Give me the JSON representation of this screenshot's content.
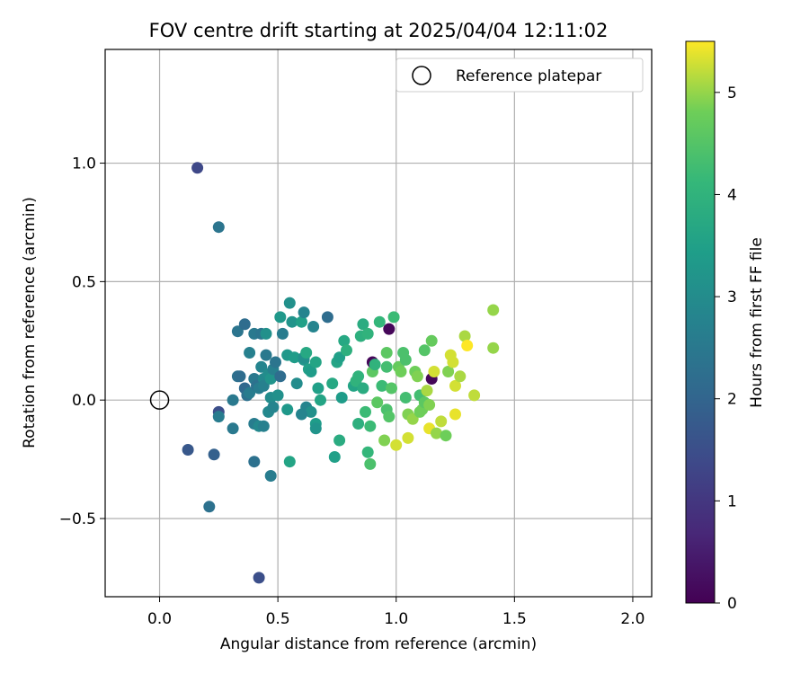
{
  "chart_data": {
    "type": "scatter",
    "title": "FOV centre drift starting at 2025/04/04 12:11:02",
    "xlabel": "Angular distance from reference (arcmin)",
    "ylabel": "Rotation from reference (arcmin)",
    "xlim": [
      -0.23,
      2.08
    ],
    "ylim": [
      -0.83,
      1.48
    ],
    "xticks": [
      0.0,
      0.5,
      1.0,
      1.5,
      2.0
    ],
    "xtick_labels": [
      "0.0",
      "0.5",
      "1.0",
      "1.5",
      "2.0"
    ],
    "yticks": [
      -0.5,
      0.0,
      0.5,
      1.0
    ],
    "ytick_labels": [
      "−0.5",
      "0.0",
      "0.5",
      "1.0"
    ],
    "grid": true,
    "legend": {
      "position": "top-right",
      "entries": [
        {
          "label": "Reference platepar",
          "marker": "open-circle"
        }
      ]
    },
    "reference_point": {
      "x": 0.0,
      "y": 0.0
    },
    "colorbar": {
      "label": "Hours from first FF file",
      "range": [
        0,
        5.5
      ],
      "ticks": [
        0,
        1,
        2,
        3,
        4,
        5
      ],
      "tick_labels": [
        "0",
        "1",
        "2",
        "3",
        "4",
        "5"
      ],
      "colormap": "viridis"
    },
    "points": [
      [
        0.16,
        0.98,
        1.35
      ],
      [
        0.25,
        0.73,
        2.4
      ],
      [
        0.12,
        -0.21,
        1.7
      ],
      [
        0.23,
        -0.23,
        1.9
      ],
      [
        0.21,
        -0.45,
        2.3
      ],
      [
        0.42,
        -0.75,
        1.5
      ],
      [
        0.25,
        -0.05,
        1.5
      ],
      [
        0.25,
        -0.07,
        2.6
      ],
      [
        0.31,
        0.0,
        2.5
      ],
      [
        0.31,
        -0.12,
        2.5
      ],
      [
        0.33,
        0.1,
        2.3
      ],
      [
        0.34,
        0.1,
        2.2
      ],
      [
        0.33,
        0.29,
        2.4
      ],
      [
        0.36,
        0.32,
        2.2
      ],
      [
        0.36,
        0.05,
        2.1
      ],
      [
        0.37,
        0.02,
        2.3
      ],
      [
        0.38,
        0.03,
        2.6
      ],
      [
        0.38,
        0.2,
        2.7
      ],
      [
        0.4,
        0.28,
        2.5
      ],
      [
        0.4,
        0.09,
        2.5
      ],
      [
        0.41,
        0.06,
        2.3
      ],
      [
        0.42,
        0.05,
        2.6
      ],
      [
        0.43,
        0.28,
        2.4
      ],
      [
        0.43,
        0.14,
        2.8
      ],
      [
        0.44,
        0.09,
        2.9
      ],
      [
        0.44,
        0.06,
        2.7
      ],
      [
        0.45,
        0.19,
        2.5
      ],
      [
        0.45,
        0.28,
        3.1
      ],
      [
        0.46,
        0.11,
        3.0
      ],
      [
        0.46,
        -0.05,
        2.9
      ],
      [
        0.47,
        0.01,
        3.0
      ],
      [
        0.47,
        0.09,
        3.2
      ],
      [
        0.48,
        -0.03,
        2.8
      ],
      [
        0.48,
        0.13,
        2.7
      ],
      [
        0.49,
        0.16,
        2.4
      ],
      [
        0.5,
        0.02,
        3.1
      ],
      [
        0.47,
        -0.32,
        2.6
      ],
      [
        0.4,
        -0.26,
        2.3
      ],
      [
        0.4,
        -0.1,
        2.6
      ],
      [
        0.42,
        -0.11,
        2.9
      ],
      [
        0.44,
        -0.11,
        2.7
      ],
      [
        0.51,
        0.35,
        3.3
      ],
      [
        0.52,
        0.28,
        2.6
      ],
      [
        0.51,
        0.1,
        2.2
      ],
      [
        0.55,
        0.41,
        3.1
      ],
      [
        0.56,
        0.33,
        3.2
      ],
      [
        0.54,
        0.19,
        3.3
      ],
      [
        0.57,
        0.18,
        3.4
      ],
      [
        0.58,
        0.07,
        3.0
      ],
      [
        0.6,
        0.33,
        3.5
      ],
      [
        0.61,
        0.37,
        2.8
      ],
      [
        0.61,
        0.17,
        3.2
      ],
      [
        0.61,
        0.18,
        3.1
      ],
      [
        0.62,
        0.2,
        3.7
      ],
      [
        0.63,
        0.13,
        3.5
      ],
      [
        0.64,
        0.12,
        3.4
      ],
      [
        0.65,
        0.31,
        2.8
      ],
      [
        0.66,
        0.16,
        3.6
      ],
      [
        0.62,
        -0.03,
        2.8
      ],
      [
        0.64,
        -0.05,
        3.1
      ],
      [
        0.6,
        -0.06,
        2.8
      ],
      [
        0.54,
        -0.04,
        3.3
      ],
      [
        0.55,
        -0.26,
        3.6
      ],
      [
        0.66,
        -0.1,
        3.4
      ],
      [
        0.66,
        -0.12,
        3.2
      ],
      [
        0.67,
        0.05,
        3.5
      ],
      [
        0.68,
        0.0,
        3.6
      ],
      [
        0.71,
        0.35,
        2.2
      ],
      [
        0.73,
        0.07,
        3.7
      ],
      [
        0.74,
        -0.24,
        3.5
      ],
      [
        0.75,
        0.16,
        3.6
      ],
      [
        0.76,
        0.18,
        3.5
      ],
      [
        0.76,
        -0.17,
        3.8
      ],
      [
        0.77,
        0.01,
        3.4
      ],
      [
        0.78,
        0.25,
        3.7
      ],
      [
        0.79,
        0.21,
        3.9
      ],
      [
        0.82,
        0.06,
        3.6
      ],
      [
        0.83,
        0.08,
        4.0
      ],
      [
        0.84,
        0.1,
        4.0
      ],
      [
        0.84,
        -0.1,
        3.9
      ],
      [
        0.85,
        0.27,
        3.9
      ],
      [
        0.86,
        0.32,
        3.8
      ],
      [
        0.86,
        0.05,
        3.8
      ],
      [
        0.87,
        -0.05,
        4.2
      ],
      [
        0.88,
        -0.22,
        4.1
      ],
      [
        0.88,
        0.28,
        4.0
      ],
      [
        0.89,
        -0.27,
        4.4
      ],
      [
        0.89,
        -0.11,
        4.2
      ],
      [
        0.9,
        0.12,
        4.6
      ],
      [
        0.9,
        0.16,
        0.1
      ],
      [
        0.91,
        0.15,
        4.0
      ],
      [
        0.92,
        -0.01,
        4.6
      ],
      [
        0.93,
        0.33,
        4.1
      ],
      [
        0.94,
        0.06,
        4.2
      ],
      [
        0.95,
        -0.17,
        4.9
      ],
      [
        0.96,
        0.2,
        4.6
      ],
      [
        0.96,
        0.14,
        4.3
      ],
      [
        0.96,
        -0.04,
        4.4
      ],
      [
        0.97,
        -0.07,
        4.5
      ],
      [
        0.97,
        0.3,
        0.1
      ],
      [
        0.98,
        0.05,
        4.5
      ],
      [
        0.99,
        0.35,
        4.2
      ],
      [
        1.0,
        -0.19,
        5.3
      ],
      [
        1.01,
        0.14,
        4.7
      ],
      [
        1.02,
        0.12,
        4.8
      ],
      [
        1.03,
        0.2,
        4.4
      ],
      [
        1.04,
        0.17,
        4.4
      ],
      [
        1.04,
        0.01,
        4.3
      ],
      [
        1.05,
        -0.06,
        4.9
      ],
      [
        1.05,
        -0.16,
        5.3
      ],
      [
        1.07,
        -0.08,
        5.0
      ],
      [
        1.08,
        0.12,
        4.8
      ],
      [
        1.09,
        0.1,
        4.9
      ],
      [
        1.1,
        0.02,
        4.3
      ],
      [
        1.1,
        -0.05,
        4.8
      ],
      [
        1.11,
        -0.04,
        4.8
      ],
      [
        1.12,
        0.21,
        4.5
      ],
      [
        1.12,
        -0.01,
        4.6
      ],
      [
        1.13,
        0.04,
        5.1
      ],
      [
        1.14,
        -0.02,
        4.9
      ],
      [
        1.14,
        -0.12,
        5.4
      ],
      [
        1.15,
        0.25,
        4.7
      ],
      [
        1.15,
        0.09,
        0.1
      ],
      [
        1.16,
        0.12,
        5.3
      ],
      [
        1.17,
        -0.14,
        5.0
      ],
      [
        1.19,
        -0.09,
        5.2
      ],
      [
        1.21,
        -0.15,
        4.8
      ],
      [
        1.22,
        0.12,
        4.9
      ],
      [
        1.23,
        0.19,
        5.3
      ],
      [
        1.24,
        0.16,
        5.3
      ],
      [
        1.25,
        -0.06,
        5.4
      ],
      [
        1.25,
        0.06,
        5.3
      ],
      [
        1.27,
        0.1,
        5.1
      ],
      [
        1.29,
        0.27,
        5.1
      ],
      [
        1.3,
        0.23,
        5.5
      ],
      [
        1.33,
        0.02,
        5.2
      ],
      [
        1.41,
        0.38,
        5.0
      ],
      [
        1.41,
        0.22,
        5.0
      ]
    ],
    "point_format": [
      "x",
      "y",
      "hours"
    ]
  }
}
